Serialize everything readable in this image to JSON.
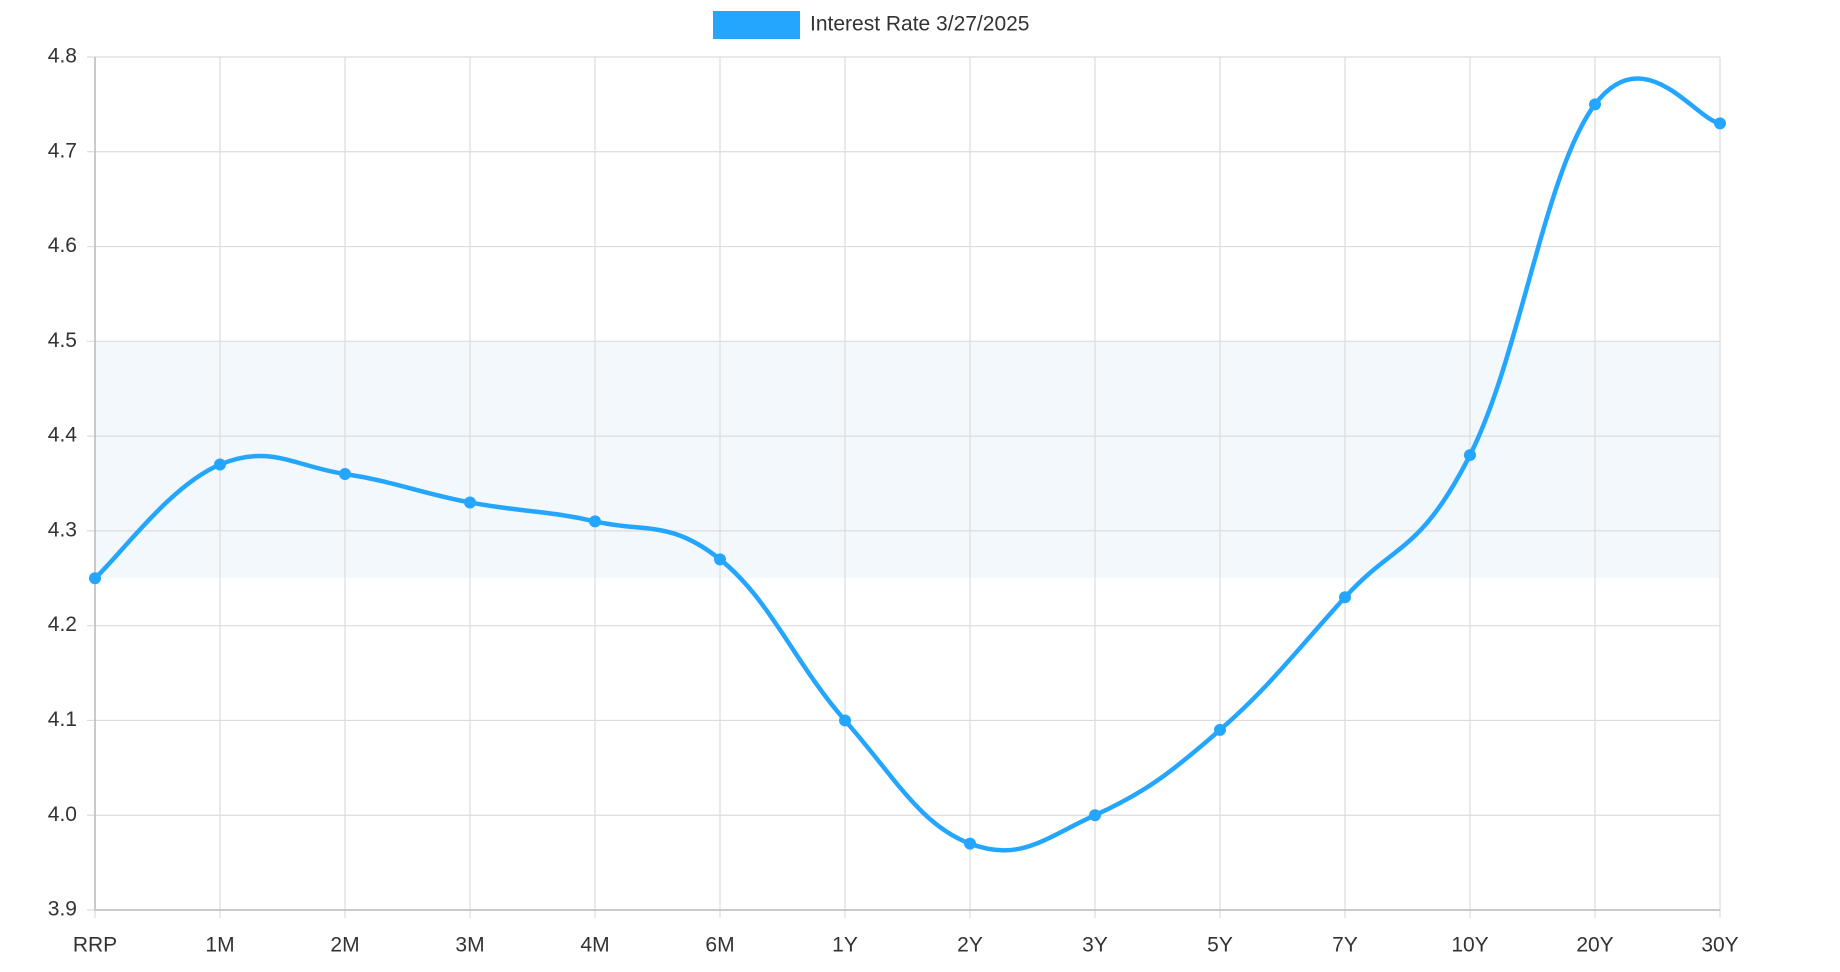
{
  "chart_data": {
    "type": "line",
    "categories": [
      "RRP",
      "1M",
      "2M",
      "3M",
      "4M",
      "6M",
      "1Y",
      "2Y",
      "3Y",
      "5Y",
      "7Y",
      "10Y",
      "20Y",
      "30Y"
    ],
    "series": [
      {
        "name": "Interest Rate 3/27/2025",
        "color": "#24a6ff",
        "values": [
          4.25,
          4.37,
          4.36,
          4.33,
          4.31,
          4.27,
          4.1,
          3.97,
          4.0,
          4.09,
          4.23,
          4.38,
          4.75,
          4.73
        ]
      }
    ],
    "shaded_range": [
      4.25,
      4.5
    ],
    "shaded_color": "#f3f8fc",
    "ylim": [
      3.9,
      4.8
    ],
    "yticks": [
      3.9,
      {
        "value": 4,
        "label": "4.0"
      },
      4.1,
      4.2,
      4.3,
      4.4,
      4.5,
      4.6,
      4.7,
      4.8
    ],
    "grid": true,
    "legend": "top"
  }
}
